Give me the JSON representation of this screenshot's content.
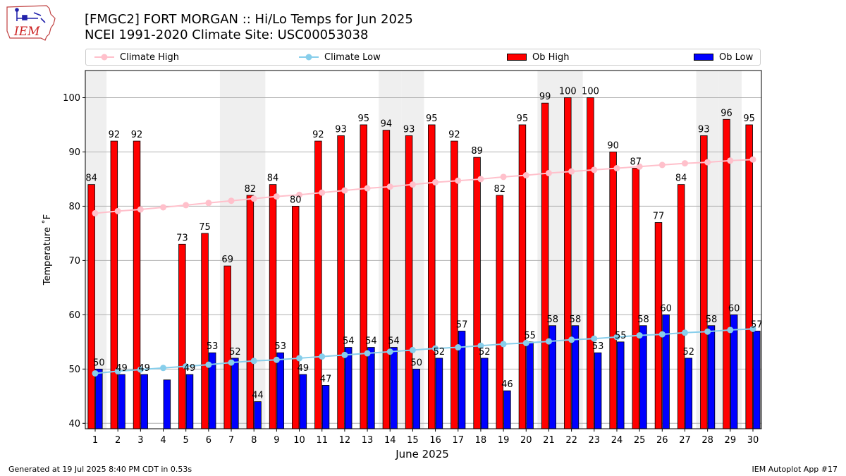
{
  "header": {
    "title_line1": "[FMGC2] FORT MORGAN :: Hi/Lo Temps for Jun 2025",
    "title_line2": "NCEI 1991-2020 Climate Site: USC00053038",
    "logo_text": "IEM"
  },
  "legend": {
    "items": [
      "Climate High",
      "Climate Low",
      "Ob High",
      "Ob Low"
    ]
  },
  "footer": {
    "generated": "Generated at 19 Jul 2025 8:40 PM CDT in 0.53s",
    "app": "IEM Autoplot App #17"
  },
  "colors": {
    "ob_high": "#ff0000",
    "ob_low": "#0000ff",
    "climate_high": "#ffc0cb",
    "climate_low": "#87ceeb",
    "weekend_shade": "#efefef"
  },
  "chart_data": {
    "type": "bar",
    "xlabel": "June 2025",
    "ylabel": "Temperature ˚F",
    "ylim": [
      39,
      105
    ],
    "yticks": [
      40,
      50,
      60,
      70,
      80,
      90,
      100
    ],
    "grid": "horizontal",
    "legend_position": "top",
    "categories": [
      "1",
      "2",
      "3",
      "4",
      "5",
      "6",
      "7",
      "8",
      "9",
      "10",
      "11",
      "12",
      "13",
      "14",
      "15",
      "16",
      "17",
      "18",
      "19",
      "20",
      "21",
      "22",
      "23",
      "24",
      "25",
      "26",
      "27",
      "28",
      "29",
      "30"
    ],
    "shaded_days": [
      1,
      7,
      8,
      14,
      15,
      21,
      22,
      28,
      29
    ],
    "series": [
      {
        "name": "Ob High",
        "kind": "bar",
        "values": [
          84,
          92,
          92,
          null,
          73,
          75,
          69,
          82,
          84,
          80,
          92,
          93,
          95,
          94,
          93,
          95,
          92,
          89,
          82,
          95,
          99,
          100,
          100,
          90,
          87,
          77,
          84,
          93,
          96,
          95
        ]
      },
      {
        "name": "Ob Low",
        "kind": "bar",
        "values": [
          50,
          49,
          49,
          48,
          49,
          53,
          52,
          44,
          53,
          49,
          47,
          54,
          54,
          54,
          50,
          52,
          57,
          52,
          46,
          55,
          58,
          58,
          53,
          55,
          58,
          60,
          52,
          58,
          60,
          57
        ]
      },
      {
        "name": "Climate High",
        "kind": "line",
        "values": [
          78.7,
          79.1,
          79.4,
          79.8,
          80.2,
          80.6,
          81.0,
          81.4,
          81.8,
          82.1,
          82.5,
          82.9,
          83.3,
          83.6,
          84.0,
          84.4,
          84.7,
          85.0,
          85.4,
          85.7,
          86.1,
          86.4,
          86.7,
          87.0,
          87.3,
          87.6,
          87.9,
          88.1,
          88.4,
          88.6
        ]
      },
      {
        "name": "Climate Low",
        "kind": "line",
        "values": [
          49.2,
          49.6,
          49.9,
          50.2,
          50.5,
          50.8,
          51.2,
          51.5,
          51.7,
          52.0,
          52.3,
          52.6,
          52.9,
          53.2,
          53.5,
          53.8,
          54.0,
          54.3,
          54.6,
          54.8,
          55.1,
          55.4,
          55.6,
          55.9,
          56.2,
          56.4,
          56.7,
          56.9,
          57.2,
          57.4
        ]
      }
    ],
    "labels_missing_for": {
      "Ob Low": [
        4
      ]
    }
  }
}
